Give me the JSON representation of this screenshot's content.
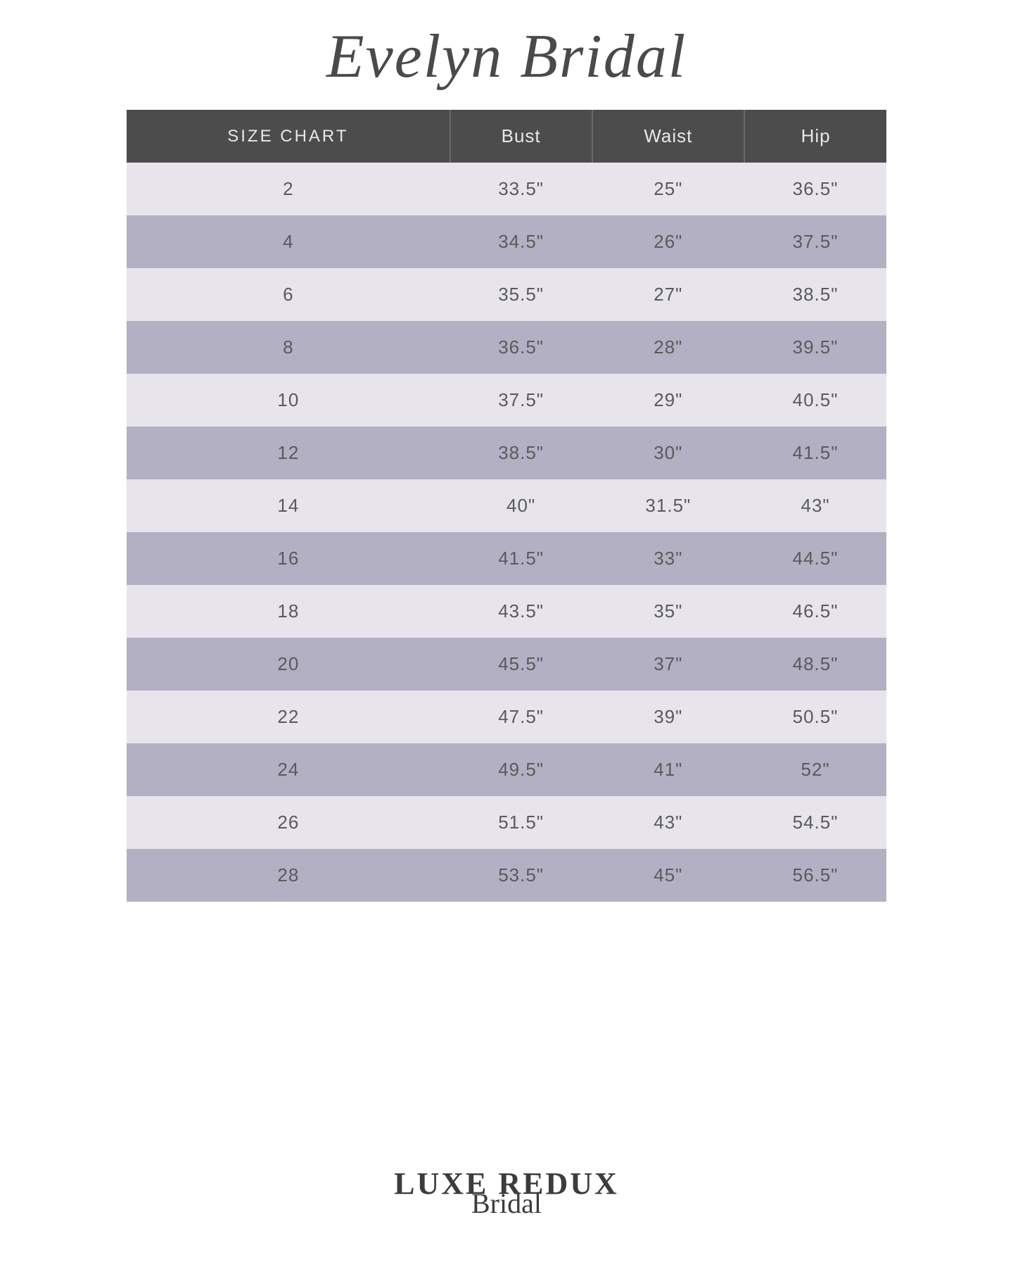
{
  "title": "Evelyn Bridal",
  "footer": {
    "main": "LUXE REDUX",
    "script": "Bridal"
  },
  "table": {
    "type": "table",
    "header_bg": "#4c4c4c",
    "header_text_color": "#e8e8e8",
    "row_odd_bg": "#e7e4ec",
    "row_even_bg": "#b3b0c4",
    "cell_text_color": "#5a5a5a",
    "cell_fontsize": 26,
    "header_fontsize": 26,
    "columns": [
      "SIZE CHART",
      "Bust",
      "Waist",
      "Hip"
    ],
    "rows": [
      [
        "2",
        "33.5\"",
        "25\"",
        "36.5\""
      ],
      [
        "4",
        "34.5\"",
        "26\"",
        "37.5\""
      ],
      [
        "6",
        "35.5\"",
        "27\"",
        "38.5\""
      ],
      [
        "8",
        "36.5\"",
        "28\"",
        "39.5\""
      ],
      [
        "10",
        "37.5\"",
        "29\"",
        "40.5\""
      ],
      [
        "12",
        "38.5\"",
        "30\"",
        "41.5\""
      ],
      [
        "14",
        "40\"",
        "31.5\"",
        "43\""
      ],
      [
        "16",
        "41.5\"",
        "33\"",
        "44.5\""
      ],
      [
        "18",
        "43.5\"",
        "35\"",
        "46.5\""
      ],
      [
        "20",
        "45.5\"",
        "37\"",
        "48.5\""
      ],
      [
        "22",
        "47.5\"",
        "39\"",
        "50.5\""
      ],
      [
        "24",
        "49.5\"",
        "41\"",
        "52\""
      ],
      [
        "26",
        "51.5\"",
        "43\"",
        "54.5\""
      ],
      [
        "28",
        "53.5\"",
        "45\"",
        "56.5\""
      ]
    ]
  }
}
